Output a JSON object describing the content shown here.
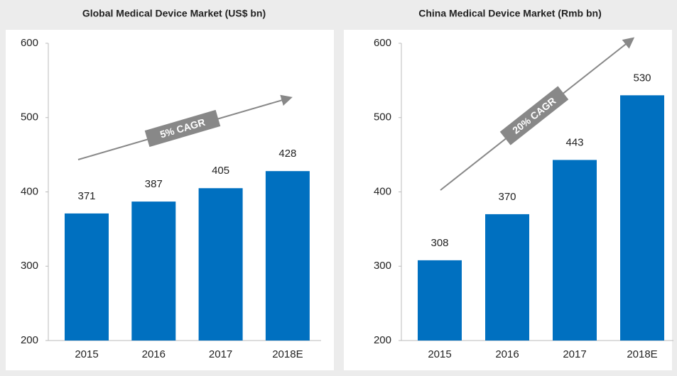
{
  "chart_data": [
    {
      "type": "bar",
      "title": "Global Medical Device Market (US$ bn)",
      "categories": [
        "2015",
        "2016",
        "2017",
        "2018E"
      ],
      "values": [
        371,
        387,
        405,
        428
      ],
      "color": "#0070c0",
      "ylim": [
        200,
        600
      ],
      "yticks": [
        200,
        300,
        400,
        500,
        600
      ],
      "grid": false,
      "annotation": "5% CAGR"
    },
    {
      "type": "bar",
      "title": "China Medical Device Market (Rmb bn)",
      "categories": [
        "2015",
        "2016",
        "2017",
        "2018E"
      ],
      "values": [
        308,
        370,
        443,
        530
      ],
      "color": "#0070c0",
      "ylim": [
        200,
        600
      ],
      "yticks": [
        200,
        300,
        400,
        500,
        600
      ],
      "grid": false,
      "annotation": "20% CAGR"
    }
  ]
}
